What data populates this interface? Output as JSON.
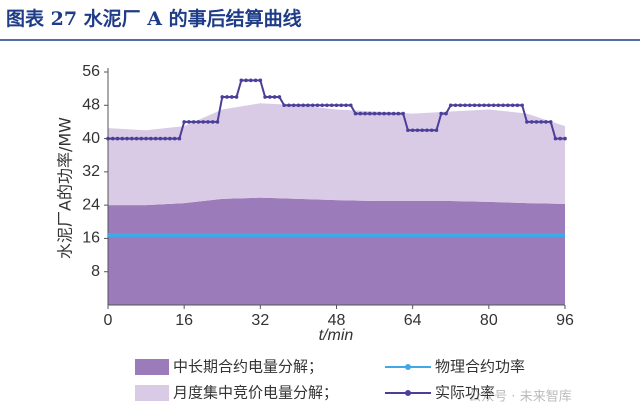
{
  "chart_data": {
    "type": "area",
    "title": "图表 27  水泥厂 A 的事后结算曲线",
    "x_label": "t/min",
    "y_label": "水泥厂A的功率/MW",
    "xlim": [
      0,
      96
    ],
    "xticks": [
      0,
      16,
      32,
      48,
      64,
      80,
      96
    ],
    "ylim": [
      0,
      56
    ],
    "yticks": [
      8,
      16,
      24,
      32,
      40,
      48,
      56
    ],
    "watermark": "公众号 · 未来智库",
    "series": [
      {
        "name": "中长期合约电量分解；",
        "type": "area",
        "color": "#9c7bbb",
        "x": [
          0,
          8,
          16,
          24,
          32,
          40,
          48,
          56,
          64,
          72,
          80,
          88,
          96
        ],
        "values": [
          24,
          24,
          24.5,
          25.5,
          25.8,
          25.5,
          25.2,
          25,
          25,
          25,
          24.8,
          24.5,
          24.3
        ]
      },
      {
        "name": "月度集中竞价电量分解；",
        "type": "area",
        "color": "#d9cbe6",
        "x": [
          0,
          8,
          16,
          24,
          32,
          40,
          48,
          56,
          64,
          72,
          80,
          88,
          96
        ],
        "values": [
          18.5,
          18,
          18.5,
          21.5,
          22.7,
          22.5,
          21.8,
          21.5,
          21,
          21.5,
          22.2,
          21.5,
          18.7
        ]
      },
      {
        "name": "物理合约功率",
        "type": "line",
        "color": "#3ea8e8",
        "x": [
          0,
          96
        ],
        "values": [
          16.8,
          16.8
        ]
      },
      {
        "name": "实际功率",
        "type": "line",
        "color": "#4b3f9a",
        "markers": true,
        "x": [
          0,
          1,
          2,
          3,
          4,
          5,
          6,
          7,
          8,
          9,
          10,
          11,
          12,
          13,
          14,
          15,
          16,
          17,
          18,
          19,
          20,
          21,
          22,
          23,
          24,
          25,
          26,
          27,
          28,
          29,
          30,
          31,
          32,
          33,
          34,
          35,
          36,
          37,
          38,
          39,
          40,
          41,
          42,
          43,
          44,
          45,
          46,
          47,
          48,
          49,
          50,
          51,
          52,
          53,
          54,
          55,
          56,
          57,
          58,
          59,
          60,
          61,
          62,
          63,
          64,
          65,
          66,
          67,
          68,
          69,
          70,
          71,
          72,
          73,
          74,
          75,
          76,
          77,
          78,
          79,
          80,
          81,
          82,
          83,
          84,
          85,
          86,
          87,
          88,
          89,
          90,
          91,
          92,
          93,
          94,
          95,
          96
        ],
        "values": [
          40,
          40,
          40,
          40,
          40,
          40,
          40,
          40,
          40,
          40,
          40,
          40,
          40,
          40,
          40,
          40,
          44,
          44,
          44,
          44,
          44,
          44,
          44,
          44,
          50,
          50,
          50,
          50,
          54,
          54,
          54,
          54,
          54,
          50,
          50,
          50,
          50,
          48,
          48,
          48,
          48,
          48,
          48,
          48,
          48,
          48,
          48,
          48,
          48,
          48,
          48,
          48,
          46,
          46,
          46,
          46,
          46,
          46,
          46,
          46,
          46,
          46,
          46,
          42,
          42,
          42,
          42,
          42,
          42,
          42,
          46,
          46,
          48,
          48,
          48,
          48,
          48,
          48,
          48,
          48,
          48,
          48,
          48,
          48,
          48,
          48,
          48,
          48,
          44,
          44,
          44,
          44,
          44,
          44,
          40,
          40,
          40
        ]
      }
    ]
  }
}
